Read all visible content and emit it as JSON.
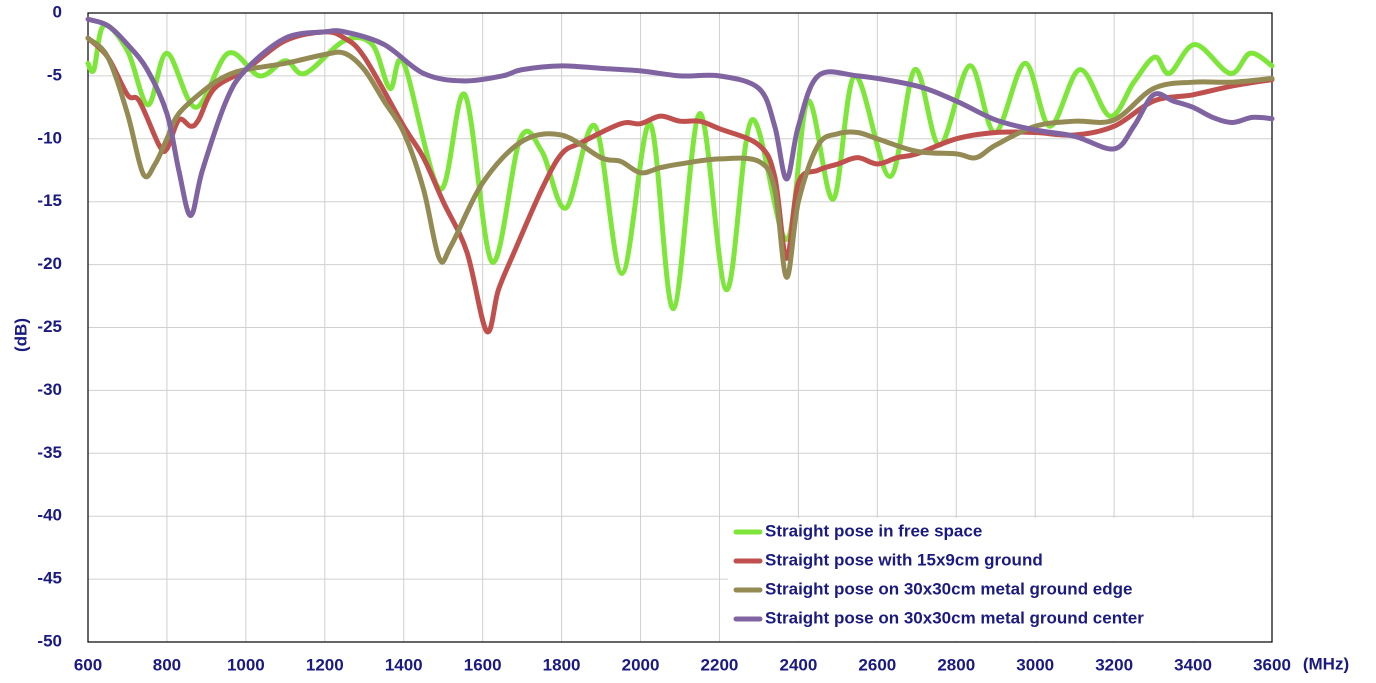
{
  "chart_data": {
    "type": "line",
    "y_label": "(dB)",
    "x_label": "(MHz)",
    "xlim": [
      600,
      3600
    ],
    "xticks": [
      600,
      800,
      1000,
      1200,
      1400,
      1600,
      1800,
      2000,
      2200,
      2400,
      2600,
      2800,
      3000,
      3200,
      3400,
      3600
    ],
    "ylim": [
      -50,
      0
    ],
    "yticks": [
      0,
      -5,
      -10,
      -15,
      -20,
      -25,
      -30,
      -35,
      -40,
      -45,
      -50
    ],
    "grid": true,
    "legend": "lower right",
    "series": [
      {
        "name": "Straight pose in free space",
        "color": "#7ee63a",
        "x": [
          600,
          615,
          640,
          700,
          752,
          800,
          873,
          955,
          1035,
          1100,
          1150,
          1250,
          1320,
          1365,
          1400,
          1492,
          1555,
          1624,
          1695,
          1750,
          1811,
          1885,
          1953,
          2024,
          2083,
          2150,
          2218,
          2282,
          2370,
          2424,
          2488,
          2543,
          2632,
          2695,
          2758,
          2834,
          2898,
          2974,
          3037,
          3113,
          3189,
          3250,
          3303,
          3340,
          3405,
          3494,
          3545,
          3600
        ],
        "values": [
          -4,
          -4.5,
          -1,
          -3,
          -7.3,
          -3.2,
          -7.5,
          -3.2,
          -5,
          -3.8,
          -4.8,
          -2.2,
          -2.5,
          -6,
          -4,
          -14,
          -6.5,
          -19.8,
          -10,
          -11,
          -15.5,
          -9,
          -20.7,
          -8.8,
          -23.5,
          -8,
          -22,
          -8.5,
          -18,
          -7,
          -14.8,
          -5,
          -13,
          -4.5,
          -10.5,
          -4.2,
          -9.5,
          -4,
          -9,
          -4.5,
          -8.2,
          -5.5,
          -3.5,
          -4.8,
          -2.5,
          -4.8,
          -3.2,
          -4.2
        ]
      },
      {
        "name": "Straight pose with 15x9cm ground",
        "color": "#c0504d",
        "x": [
          600,
          650,
          700,
          730,
          780,
          800,
          830,
          860,
          880,
          920,
          1000,
          1100,
          1200,
          1250,
          1300,
          1400,
          1450,
          1500,
          1560,
          1610,
          1640,
          1680,
          1750,
          1800,
          1850,
          1950,
          2000,
          2050,
          2100,
          2150,
          2200,
          2300,
          2340,
          2370,
          2400,
          2450,
          2500,
          2550,
          2600,
          2650,
          2700,
          2800,
          2900,
          3000,
          3100,
          3200,
          3300,
          3400,
          3500,
          3600
        ],
        "values": [
          -2,
          -3.5,
          -6.5,
          -7,
          -10.5,
          -10.8,
          -8.5,
          -9,
          -8.5,
          -6,
          -4.5,
          -2.2,
          -1.5,
          -2,
          -3.5,
          -9,
          -11.5,
          -15,
          -19,
          -25.3,
          -22,
          -19,
          -14,
          -11.2,
          -10.3,
          -8.8,
          -8.8,
          -8.2,
          -8.6,
          -8.6,
          -9.2,
          -10.5,
          -13,
          -19.5,
          -13.5,
          -12.5,
          -12,
          -11.5,
          -12,
          -11.5,
          -11.2,
          -10,
          -9.5,
          -9.5,
          -9.7,
          -9,
          -7,
          -6.5,
          -5.8,
          -5.3
        ]
      },
      {
        "name": "Straight pose on 30x30cm metal ground edge",
        "color": "#948a54",
        "x": [
          600,
          650,
          700,
          740,
          770,
          800,
          830,
          900,
          950,
          1000,
          1100,
          1200,
          1250,
          1300,
          1350,
          1400,
          1450,
          1490,
          1520,
          1600,
          1700,
          1800,
          1900,
          1950,
          2000,
          2050,
          2100,
          2200,
          2300,
          2340,
          2370,
          2400,
          2450,
          2500,
          2550,
          2600,
          2700,
          2800,
          2850,
          2900,
          3000,
          3100,
          3200,
          3300,
          3400,
          3500,
          3600
        ],
        "values": [
          -2,
          -3.5,
          -8,
          -12.8,
          -12,
          -10,
          -8,
          -6,
          -5,
          -4.5,
          -4,
          -3.3,
          -3.2,
          -4.5,
          -7,
          -9.5,
          -14,
          -19.5,
          -18.5,
          -13.5,
          -10.2,
          -9.7,
          -11.5,
          -11.8,
          -12.7,
          -12.3,
          -12,
          -11.6,
          -11.8,
          -14,
          -21,
          -15,
          -10.5,
          -9.6,
          -9.5,
          -10,
          -11,
          -11.2,
          -11.5,
          -10.5,
          -9,
          -8.6,
          -8.5,
          -6,
          -5.5,
          -5.5,
          -5.2
        ]
      },
      {
        "name": "Straight pose on 30x30cm metal ground center",
        "color": "#8064a2",
        "x": [
          600,
          650,
          700,
          750,
          800,
          830,
          860,
          890,
          950,
          1000,
          1100,
          1200,
          1250,
          1350,
          1450,
          1550,
          1650,
          1700,
          1800,
          1900,
          2000,
          2100,
          2200,
          2300,
          2340,
          2370,
          2400,
          2450,
          2550,
          2700,
          2800,
          2900,
          3000,
          3100,
          3200,
          3250,
          3300,
          3350,
          3400,
          3450,
          3500,
          3550,
          3600
        ],
        "values": [
          -0.5,
          -1,
          -2.5,
          -4.5,
          -8,
          -12.5,
          -16.1,
          -12.5,
          -7,
          -4.5,
          -2,
          -1.5,
          -1.5,
          -2.5,
          -4.8,
          -5.4,
          -5,
          -4.5,
          -4.2,
          -4.4,
          -4.6,
          -5,
          -5,
          -6,
          -9,
          -13.2,
          -9,
          -5,
          -5,
          -5.8,
          -7,
          -8.5,
          -9.3,
          -9.8,
          -10.8,
          -9,
          -6.5,
          -7,
          -7.5,
          -8.3,
          -8.7,
          -8.3,
          -8.4
        ]
      }
    ]
  }
}
